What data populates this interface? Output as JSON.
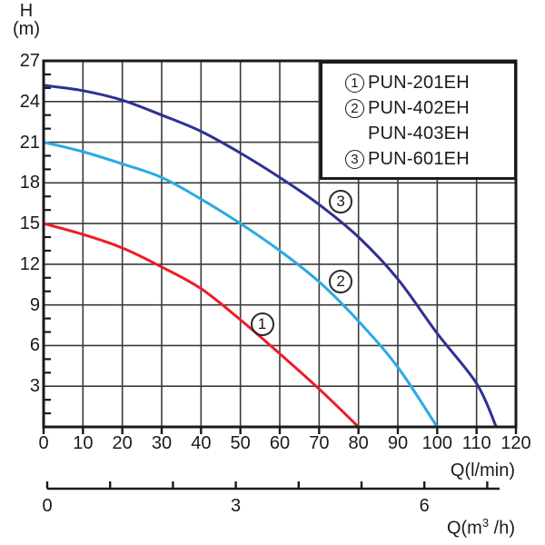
{
  "labels": {
    "y_title_line1": "H",
    "y_title_line2": "(m)",
    "x_title": "Q(l/min)",
    "x2_title_pre": "Q(m",
    "x2_title_sup": "3",
    "x2_title_post": " /h)"
  },
  "colors": {
    "background": "#ffffff",
    "grid": "#3a3a3a",
    "axis": "#1a1a1a",
    "text": "#1a1a1a"
  },
  "chart_data": {
    "type": "line",
    "title": "",
    "xlabel": "Q(l/min)",
    "x2label": "Q(m3/h)",
    "ylabel": "H (m)",
    "xlim": [
      0,
      120
    ],
    "ylim": [
      0,
      27
    ],
    "grid": true,
    "x_gridline_step": 10,
    "y_gridline_step": 3,
    "y_minor_tick_step": 1,
    "x_ticks": [
      0,
      10,
      20,
      30,
      40,
      50,
      60,
      70,
      80,
      90,
      100,
      110,
      120
    ],
    "y_tick_labels": [
      3,
      6,
      9,
      12,
      15,
      18,
      21,
      24,
      27
    ],
    "x2_ticks": [
      {
        "v": 0,
        "label": "0"
      },
      {
        "v": 1,
        "label": ""
      },
      {
        "v": 2,
        "label": ""
      },
      {
        "v": 3,
        "label": "3"
      },
      {
        "v": 4,
        "label": ""
      },
      {
        "v": 5,
        "label": ""
      },
      {
        "v": 6,
        "label": "6"
      },
      {
        "v": 7,
        "label": ""
      }
    ],
    "series": [
      {
        "name": "PUN-201EH",
        "curve_marker": "1",
        "color": "#ee1c25",
        "points": [
          [
            0,
            15
          ],
          [
            10,
            14.2
          ],
          [
            20,
            13.2
          ],
          [
            30,
            11.8
          ],
          [
            40,
            10.2
          ],
          [
            50,
            7.9
          ],
          [
            60,
            5.4
          ],
          [
            70,
            2.8
          ],
          [
            80,
            0
          ]
        ]
      },
      {
        "name": "PUN-402EH / PUN-403EH",
        "curve_marker": "2",
        "color": "#29abe2",
        "points": [
          [
            0,
            21
          ],
          [
            10,
            20.3
          ],
          [
            20,
            19.4
          ],
          [
            30,
            18.4
          ],
          [
            40,
            16.8
          ],
          [
            50,
            15.0
          ],
          [
            60,
            13.0
          ],
          [
            70,
            10.7
          ],
          [
            80,
            7.8
          ],
          [
            90,
            4.4
          ],
          [
            100,
            0
          ]
        ]
      },
      {
        "name": "PUN-601EH",
        "curve_marker": "3",
        "color": "#2e3192",
        "points": [
          [
            0,
            25.2
          ],
          [
            10,
            24.8
          ],
          [
            20,
            24.1
          ],
          [
            30,
            23.0
          ],
          [
            40,
            21.8
          ],
          [
            50,
            20.2
          ],
          [
            60,
            18.4
          ],
          [
            70,
            16.4
          ],
          [
            80,
            14.0
          ],
          [
            90,
            10.9
          ],
          [
            100,
            6.9
          ],
          [
            110,
            3.2
          ],
          [
            115,
            0
          ]
        ]
      }
    ],
    "legend": {
      "position": "top-right",
      "entries": [
        {
          "marker": "1",
          "label": "PUN-201EH"
        },
        {
          "marker": "2",
          "label": "PUN-402EH"
        },
        {
          "marker": "",
          "label": "PUN-403EH"
        },
        {
          "marker": "3",
          "label": "PUN-601EH"
        }
      ]
    },
    "annotations": [
      {
        "marker": "1",
        "q": 55.5,
        "h": 7.6
      },
      {
        "marker": "2",
        "q": 75.5,
        "h": 10.7
      },
      {
        "marker": "3",
        "q": 75.5,
        "h": 16.6
      }
    ]
  }
}
